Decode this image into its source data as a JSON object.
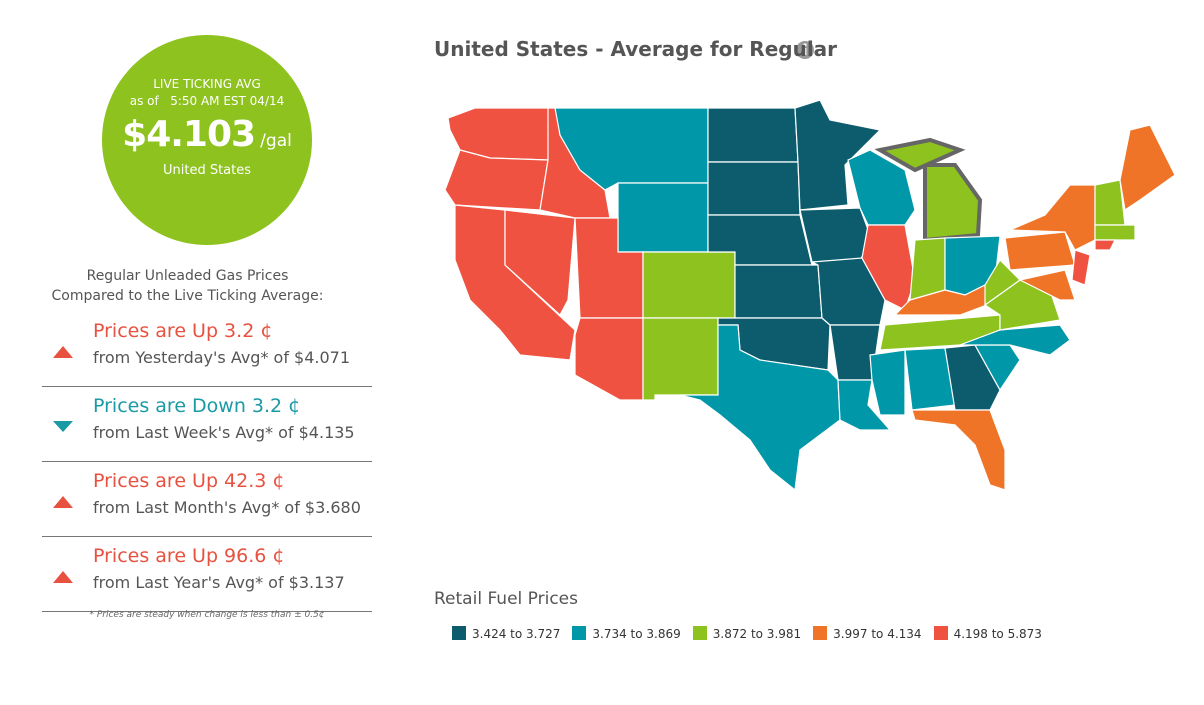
{
  "live": {
    "label": "LIVE TICKING AVG",
    "as_of": "as of",
    "time": "5:50 AM EST 04/14",
    "price": "$4.103",
    "unit": "/gal",
    "region": "United States"
  },
  "comparison": {
    "heading": [
      "Regular Unleaded Gas Prices",
      "Compared to the Live Ticking Average:"
    ],
    "items": [
      {
        "direction": "up",
        "color": "#e8513f",
        "headline": "Prices are Up 3.2 ¢",
        "detail": "from Yesterday's Avg* of $4.071"
      },
      {
        "direction": "down",
        "color": "#1a9aa5",
        "headline": "Prices are Down 3.2 ¢",
        "detail": "from Last Week's Avg* of $4.135"
      },
      {
        "direction": "up",
        "color": "#e8513f",
        "headline": "Prices are Up 42.3 ¢",
        "detail": "from Last Month's Avg* of $3.680"
      },
      {
        "direction": "up",
        "color": "#e8513f",
        "headline": "Prices are Up 96.6 ¢",
        "detail": "from Last Year's Avg* of $3.137"
      }
    ],
    "footnote": "* Prices are steady when change is less than ± 0.5¢"
  },
  "map": {
    "title": "United States - Average for Regular"
  },
  "legend": {
    "title": "Retail Fuel Prices",
    "items": [
      {
        "label": "3.424 to 3.727",
        "color": "#0d5c6e"
      },
      {
        "label": "3.734 to 3.869",
        "color": "#0097a9"
      },
      {
        "label": "3.872 to 3.981",
        "color": "#8dc21f"
      },
      {
        "label": "3.997 to 4.134",
        "color": "#f07427"
      },
      {
        "label": "4.198 to 5.873",
        "color": "#ef5240"
      }
    ]
  }
}
